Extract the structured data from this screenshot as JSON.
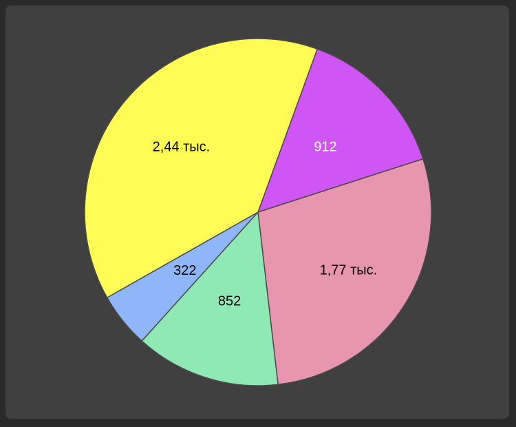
{
  "chart_data": {
    "type": "pie",
    "slices": [
      {
        "label": "912",
        "value": 912,
        "color": "#CF55F5",
        "label_color": "#ffffff"
      },
      {
        "label": "1,77 тыс.",
        "value": 1770,
        "color": "#E895AF",
        "label_color": "#000000"
      },
      {
        "label": "852",
        "value": 852,
        "color": "#8EE9B4",
        "label_color": "#000000"
      },
      {
        "label": "322",
        "value": 322,
        "color": "#8FB6F8",
        "label_color": "#000000"
      },
      {
        "label": "2,44 тыс.",
        "value": 2440,
        "color": "#FFFD55",
        "label_color": "#000000"
      }
    ],
    "start_angle_deg": 20,
    "direction": "clockwise"
  }
}
